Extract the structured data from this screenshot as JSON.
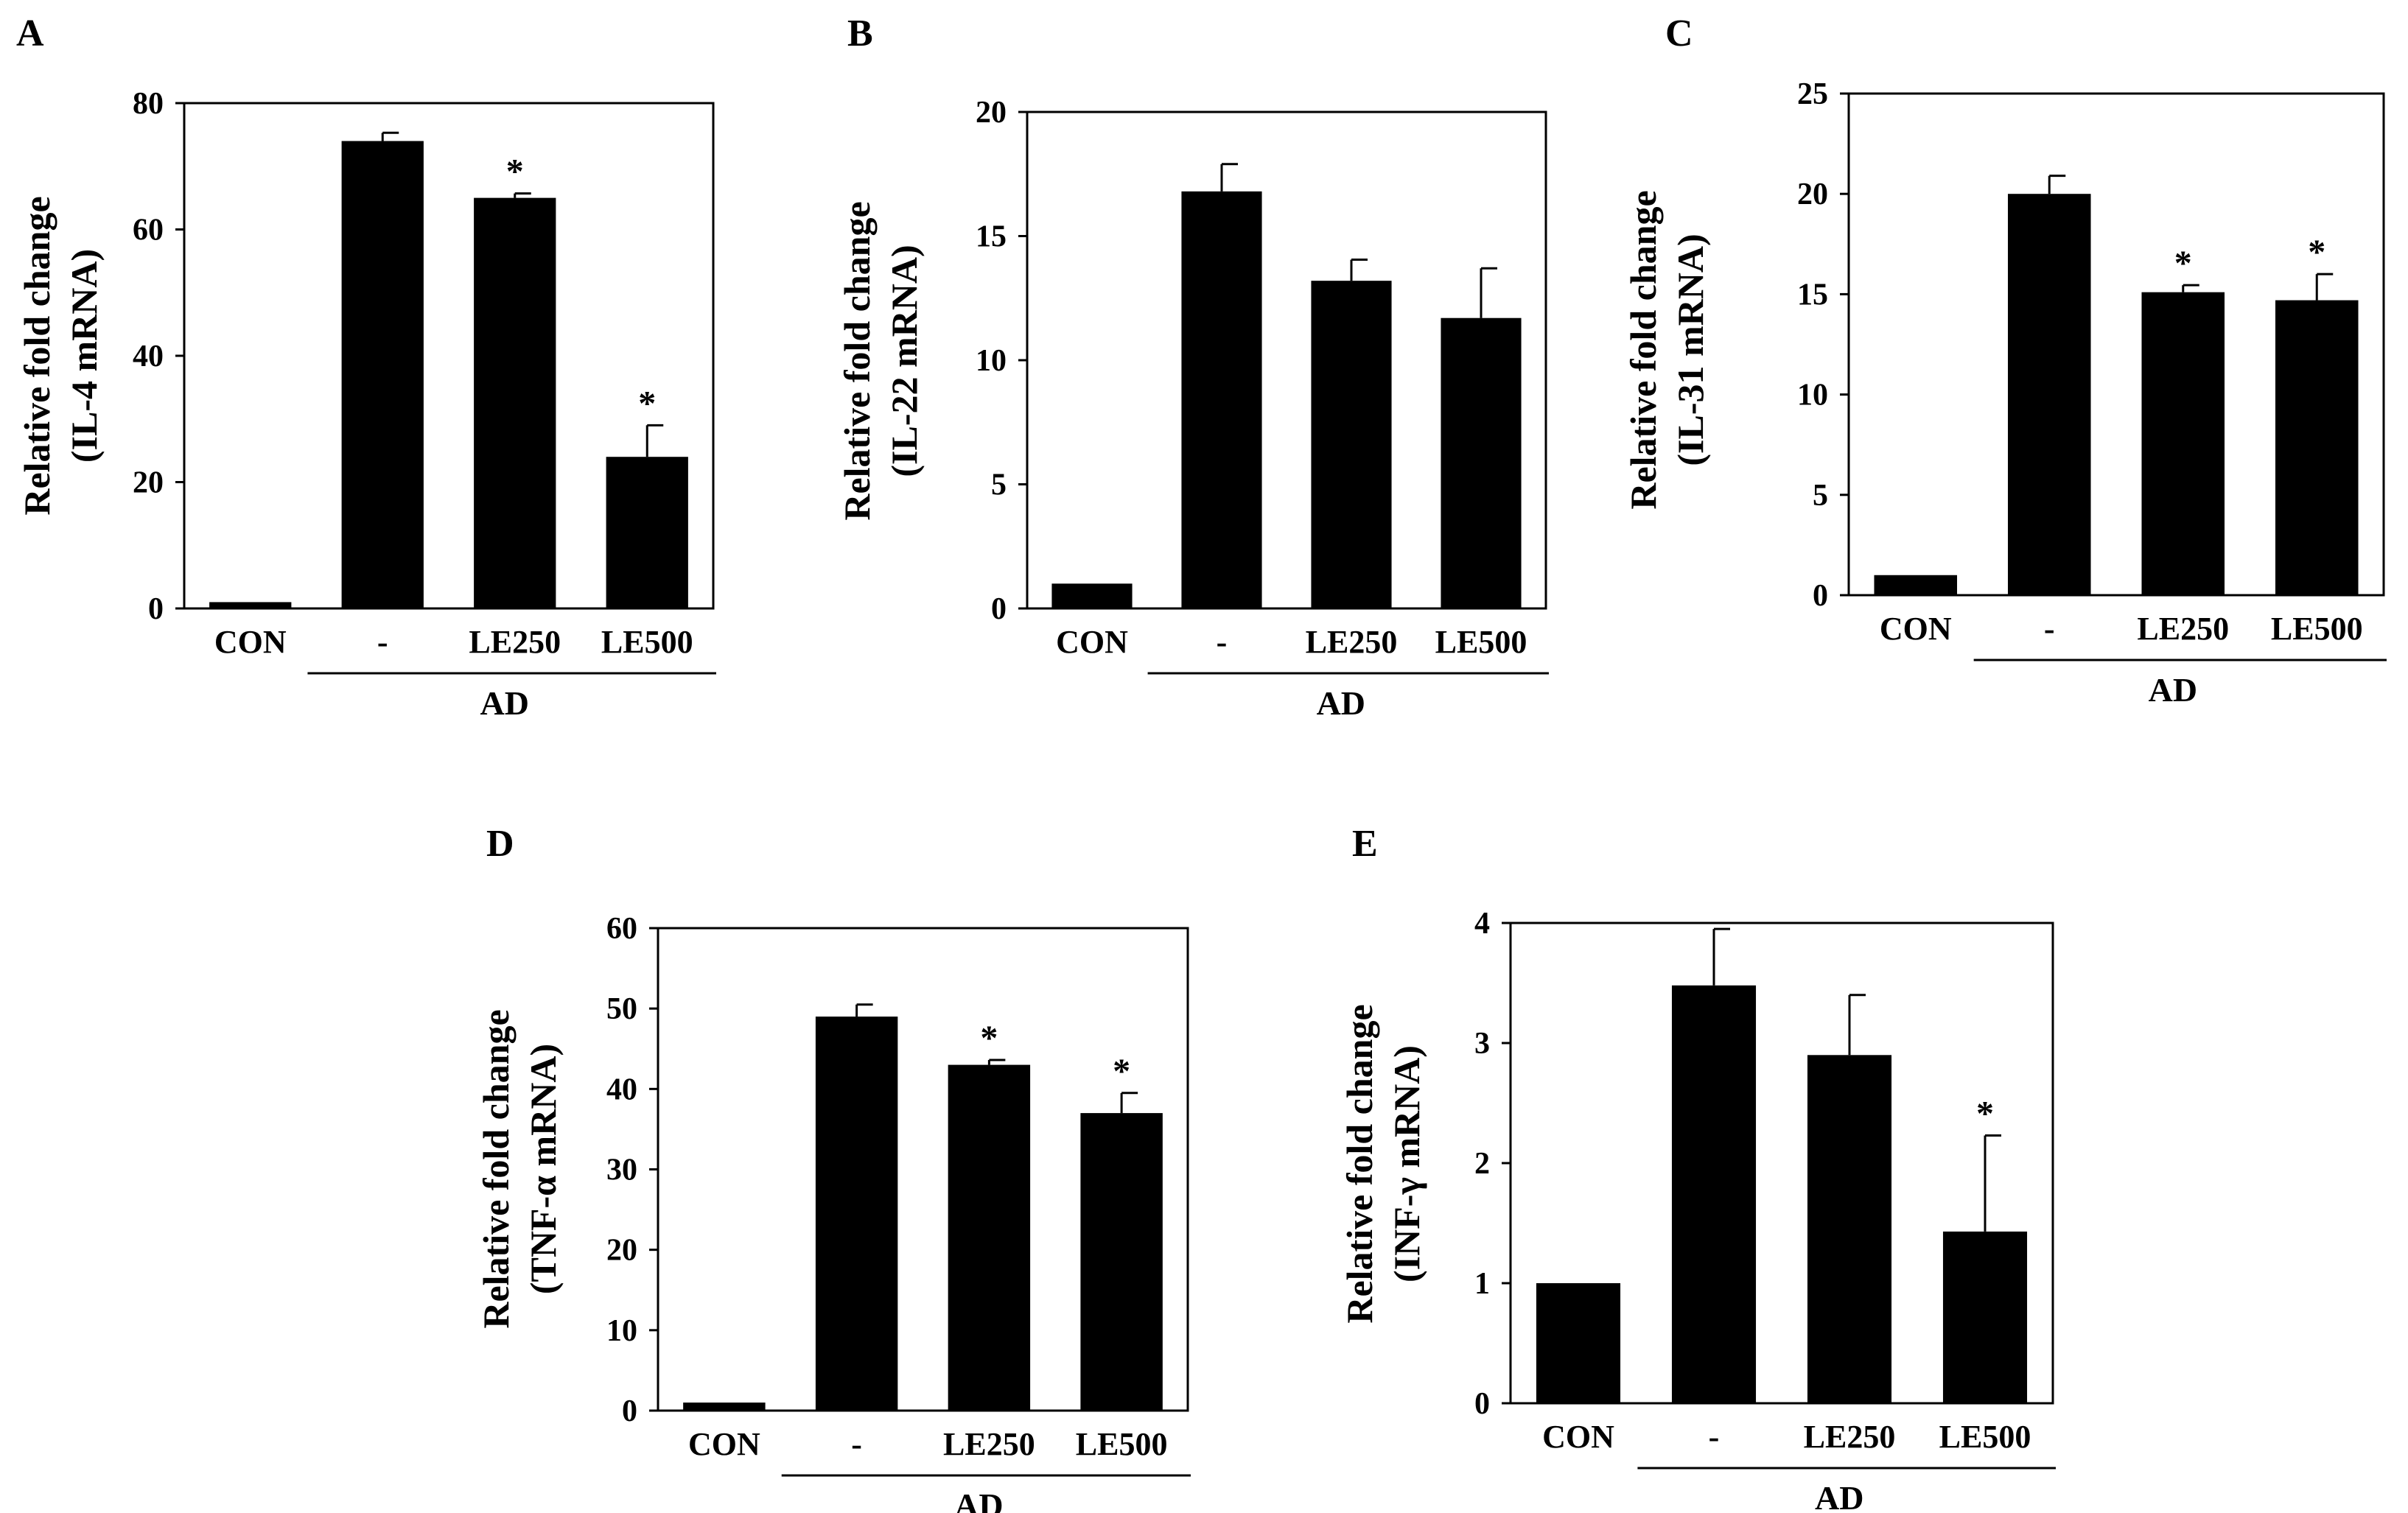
{
  "chart_data": [
    {
      "panel": "A",
      "type": "bar",
      "title": "",
      "xlabel": "",
      "ylabel_line1": "Relative fold change",
      "ylabel_line2": "(IL-4 mRNA)",
      "categories": [
        "CON",
        "-",
        "LE250",
        "LE500"
      ],
      "values": [
        1,
        74,
        65,
        24
      ],
      "errors": [
        0,
        1.3,
        0.7,
        5
      ],
      "significant": [
        false,
        false,
        true,
        true
      ],
      "star": "*",
      "ylim": [
        0,
        80
      ],
      "yticks": [
        0,
        20,
        40,
        60,
        80
      ],
      "group_label": "AD",
      "bar_color": "#000000"
    },
    {
      "panel": "B",
      "type": "bar",
      "title": "",
      "xlabel": "",
      "ylabel_line1": "Relative fold change",
      "ylabel_line2": "(IL-22 mRNA)",
      "categories": [
        "CON",
        "-",
        "LE250",
        "LE500"
      ],
      "values": [
        1,
        16.8,
        13.2,
        11.7
      ],
      "errors": [
        0,
        1.1,
        0.85,
        2.0
      ],
      "significant": [
        false,
        false,
        false,
        false
      ],
      "star": "*",
      "ylim": [
        0,
        20
      ],
      "yticks": [
        0,
        5,
        10,
        15,
        20
      ],
      "group_label": "AD",
      "bar_color": "#000000"
    },
    {
      "panel": "C",
      "type": "bar",
      "title": "",
      "xlabel": "",
      "ylabel_line1": "Relative fold change",
      "ylabel_line2": "(IL-31 mRNA)",
      "categories": [
        "CON",
        "-",
        "LE250",
        "LE500"
      ],
      "values": [
        1,
        20,
        15.1,
        14.7
      ],
      "errors": [
        0,
        0.9,
        0.35,
        1.3
      ],
      "significant": [
        false,
        false,
        true,
        true
      ],
      "star": "*",
      "ylim": [
        0,
        25
      ],
      "yticks": [
        0,
        5,
        10,
        15,
        20,
        25
      ],
      "group_label": "AD",
      "bar_color": "#000000"
    },
    {
      "panel": "D",
      "type": "bar",
      "title": "",
      "xlabel": "",
      "ylabel_line1": "Relative fold change",
      "ylabel_line2": "(TNF-α mRNA)",
      "categories": [
        "CON",
        "-",
        "LE250",
        "LE500"
      ],
      "values": [
        1,
        49,
        43,
        37
      ],
      "errors": [
        0,
        1.5,
        0.6,
        2.5
      ],
      "significant": [
        false,
        false,
        true,
        true
      ],
      "star": "*",
      "ylim": [
        0,
        60
      ],
      "yticks": [
        0,
        10,
        20,
        30,
        40,
        50,
        60
      ],
      "group_label": "AD",
      "bar_color": "#000000"
    },
    {
      "panel": "E",
      "type": "bar",
      "title": "",
      "xlabel": "",
      "ylabel_line1": "Relative fold change",
      "ylabel_line2": "(INF-γ mRNA)",
      "categories": [
        "CON",
        "-",
        "LE250",
        "LE500"
      ],
      "values": [
        1,
        3.48,
        2.9,
        1.43
      ],
      "errors": [
        0,
        0.47,
        0.5,
        0.8
      ],
      "significant": [
        false,
        false,
        false,
        true
      ],
      "star": "*",
      "ylim": [
        0,
        4
      ],
      "yticks": [
        0,
        1,
        2,
        3,
        4
      ],
      "group_label": "AD",
      "bar_color": "#000000"
    }
  ]
}
